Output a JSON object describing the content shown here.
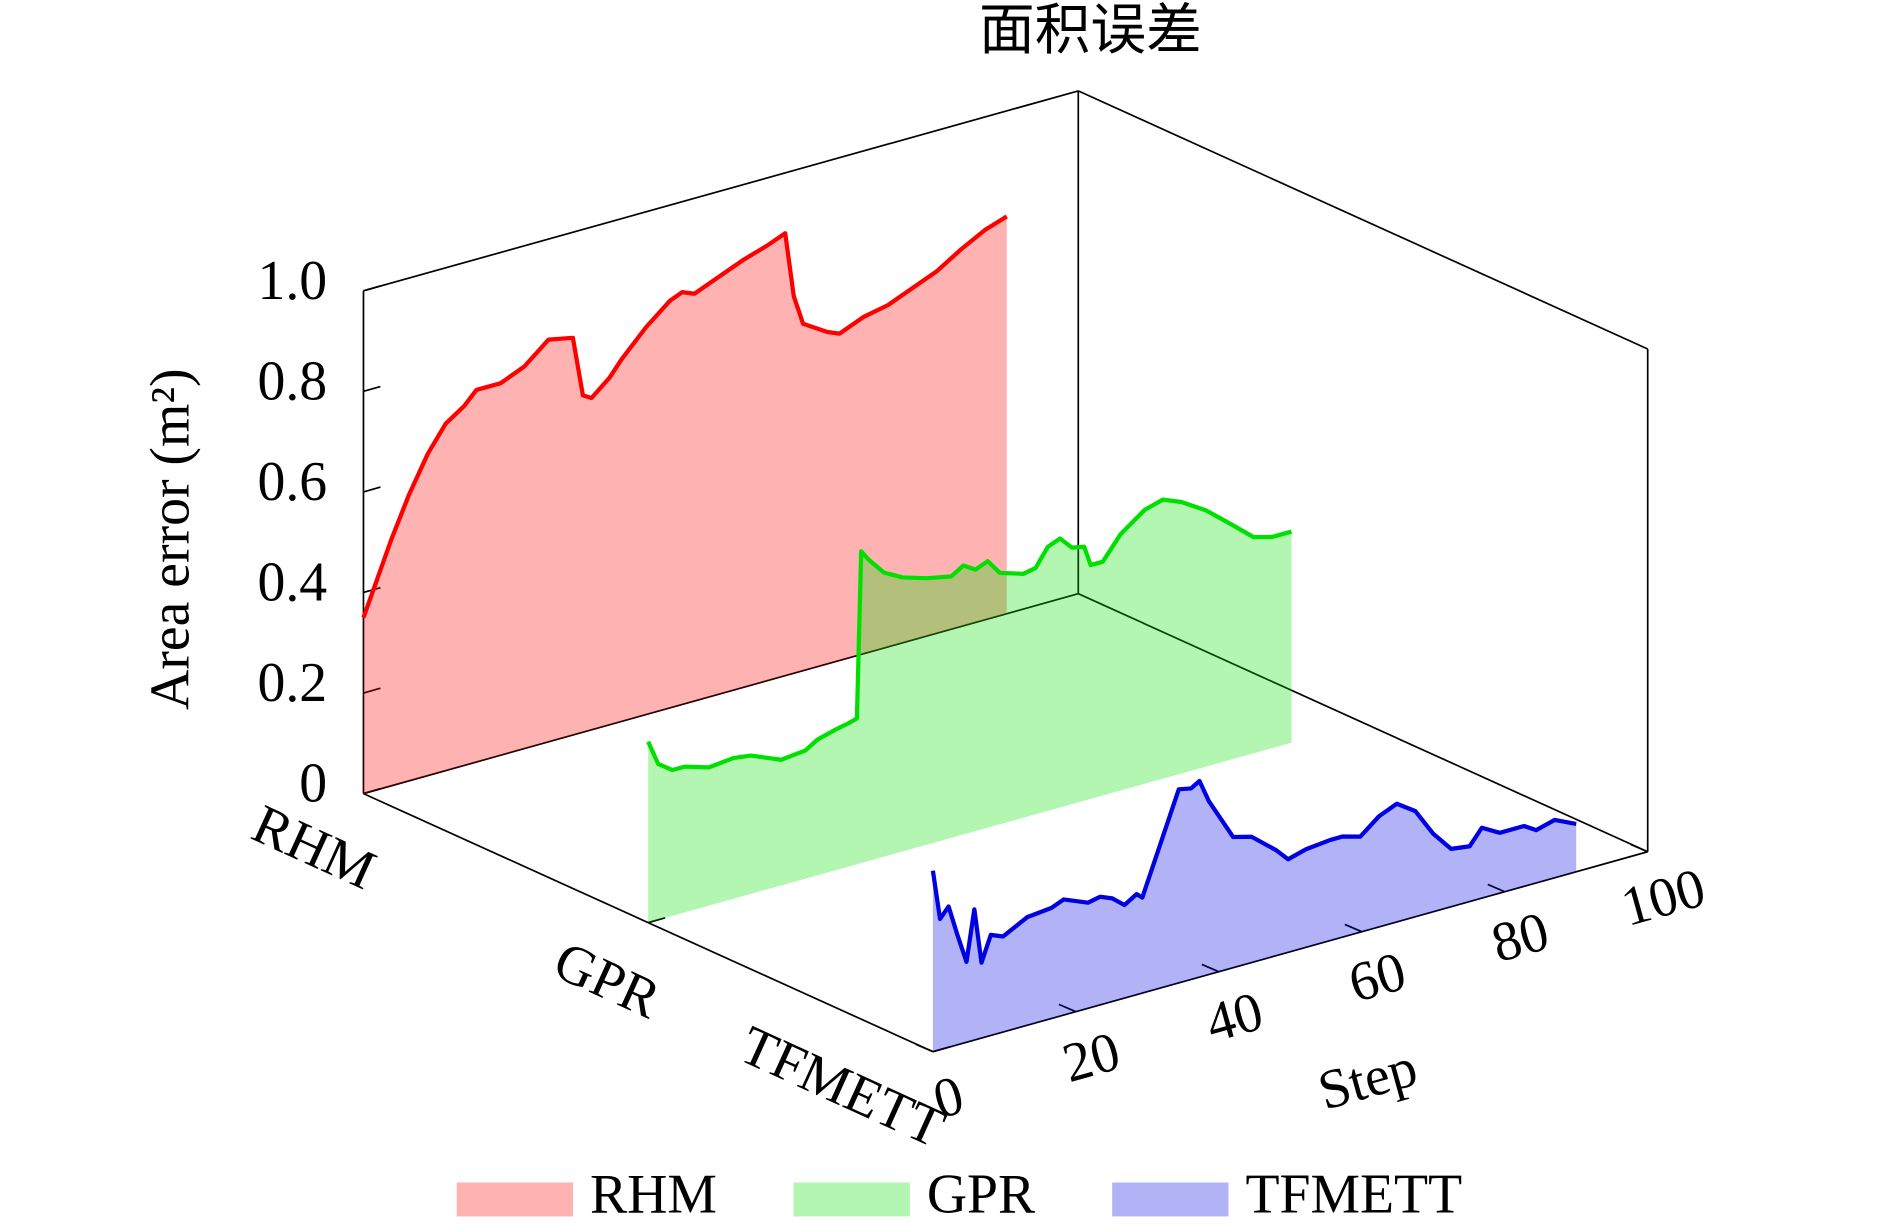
{
  "chart_data": {
    "type": "waterfall3d",
    "title": "面积误差",
    "xlabel": "Step",
    "ylabel": "Area error (m²)",
    "xlim": [
      0,
      100
    ],
    "xticks": [
      0,
      20,
      40,
      60,
      80,
      100
    ],
    "ylim": [
      0,
      1
    ],
    "yticks": [
      0,
      0.2,
      0.4,
      0.6,
      0.8,
      {
        "value": 1,
        "label": "1.0"
      }
    ],
    "legend": "bottom",
    "series": [
      {
        "name": "RHM",
        "color": "#ff0000",
        "x": [
          0,
          3.9,
          6.4,
          9,
          11.5,
          14.1,
          15.8,
          19.2,
          22.5,
          25.9,
          29.3,
          30.7,
          31.9,
          34.4,
          36.1,
          39.5,
          42.9,
          44.6,
          46.3,
          49.7,
          53.1,
          56.4,
          59,
          60.2,
          61.5,
          64.9,
          66.6,
          70,
          73.4,
          76.8,
          80.2,
          83.6,
          86.9,
          90
        ],
        "values": [
          0.35,
          0.49,
          0.57,
          0.64,
          0.69,
          0.715,
          0.74,
          0.74,
          0.76,
          0.8,
          0.79,
          0.67,
          0.66,
          0.69,
          0.72,
          0.77,
          0.81,
          0.82,
          0.81,
          0.83,
          0.85,
          0.865,
          0.88,
          0.75,
          0.69,
          0.66,
          0.65,
          0.67,
          0.68,
          0.7,
          0.72,
          0.75,
          0.775,
          0.79
        ]
      },
      {
        "name": "GPR",
        "color": "#00e000",
        "x": [
          0,
          1.4,
          3.4,
          5.1,
          8.5,
          11.9,
          14.4,
          18.6,
          22,
          23.7,
          26.3,
          28,
          29.2,
          29.8,
          30.8,
          33,
          35.6,
          39,
          42.4,
          44.1,
          45.8,
          47.5,
          49.2,
          52.5,
          54.2,
          55.9,
          57.6,
          59.3,
          61,
          61.9,
          63.6,
          66.1,
          69.5,
          72,
          74.6,
          78,
          81.4,
          84.7,
          87.3,
          90
        ],
        "values": [
          0.36,
          0.31,
          0.29,
          0.29,
          0.275,
          0.28,
          0.275,
          0.25,
          0.255,
          0.27,
          0.28,
          0.285,
          0.29,
          0.62,
          0.6,
          0.565,
          0.545,
          0.53,
          0.52,
          0.535,
          0.52,
          0.53,
          0.5,
          0.485,
          0.49,
          0.525,
          0.535,
          0.51,
          0.505,
          0.465,
          0.465,
          0.51,
          0.545,
          0.555,
          0.54,
          0.51,
          0.47,
          0.43,
          0.42,
          0.42
        ]
      },
      {
        "name": "TFMETT",
        "color": "#0000e0",
        "x": [
          0,
          1,
          2.2,
          3.4,
          4.7,
          5.8,
          6.8,
          8.1,
          9.8,
          13.2,
          16.6,
          18.3,
          21.7,
          23.4,
          25.1,
          26.8,
          28.5,
          29.3,
          32.7,
          34.4,
          36.1,
          37.3,
          38.6,
          42,
          44.6,
          48,
          49.7,
          52.2,
          55.6,
          57.3,
          59.8,
          62.4,
          64.9,
          67.5,
          70,
          72.5,
          75.1,
          76.8,
          79.3,
          82.7,
          84.4,
          87,
          90
        ],
        "values": [
          0.36,
          0.26,
          0.28,
          0.22,
          0.16,
          0.26,
          0.15,
          0.2,
          0.19,
          0.215,
          0.22,
          0.23,
          0.21,
          0.215,
          0.205,
          0.185,
          0.2,
          0.19,
          0.32,
          0.385,
          0.38,
          0.39,
          0.345,
          0.26,
          0.25,
          0.21,
          0.185,
          0.195,
          0.2,
          0.2,
          0.19,
          0.22,
          0.235,
          0.21,
          0.155,
          0.115,
          0.11,
          0.14,
          0.12,
          0.12,
          0.105,
          0.115,
          0.095
        ]
      }
    ]
  }
}
